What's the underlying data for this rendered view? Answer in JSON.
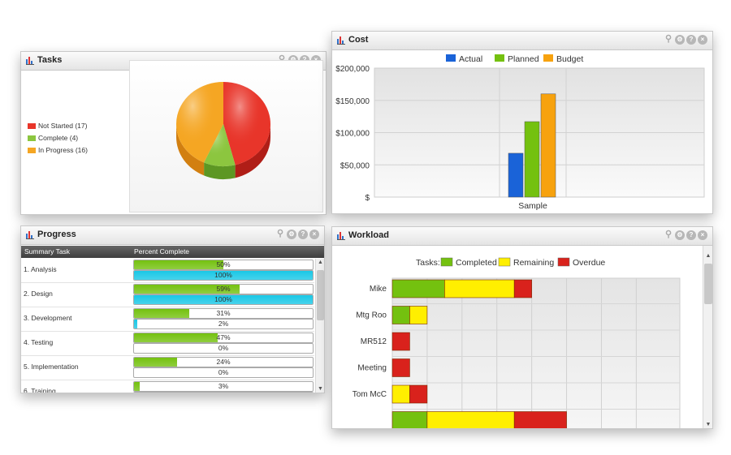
{
  "panels": {
    "tasks": {
      "title": "Tasks",
      "legend": [
        {
          "label": "Not Started (17)",
          "color": "#e8352a",
          "value": 17
        },
        {
          "label": "Complete (4)",
          "color": "#8cc63f",
          "value": 4
        },
        {
          "label": "In Progress (16)",
          "color": "#f5a623",
          "value": 16
        }
      ]
    },
    "cost": {
      "title": "Cost",
      "legend": [
        "Actual",
        "Planned",
        "Budget"
      ],
      "legend_colors": [
        "#1a63d8",
        "#74c10f",
        "#f7a20e"
      ],
      "y_ticks": [
        "$200,000",
        "$150,000",
        "$100,000",
        "$50,000",
        "$"
      ],
      "category": "Sample"
    },
    "progress": {
      "title": "Progress",
      "col_task": "Summary Task",
      "col_percent": "Percent Complete",
      "rows": [
        {
          "name": "1. Analysis",
          "complete_label": "50%",
          "complete": 50,
          "scheduled_label": "100%",
          "scheduled": 100
        },
        {
          "name": "2. Design",
          "complete_label": "59%",
          "complete": 59,
          "scheduled_label": "100%",
          "scheduled": 100
        },
        {
          "name": "3. Development",
          "complete_label": "31%",
          "complete": 31,
          "scheduled_label": "2%",
          "scheduled": 2
        },
        {
          "name": "4. Testing",
          "complete_label": "47%",
          "complete": 47,
          "scheduled_label": "0%",
          "scheduled": 0
        },
        {
          "name": "5. Implementation",
          "complete_label": "24%",
          "complete": 24,
          "scheduled_label": "0%",
          "scheduled": 0
        },
        {
          "name": "6. Training",
          "complete_label": "3%",
          "complete": 3,
          "scheduled_label": "",
          "scheduled": 0
        }
      ]
    },
    "workload": {
      "title": "Workload",
      "legend_prefix": "Tasks:",
      "legend": [
        "Completed",
        "Remaining",
        "Overdue"
      ],
      "legend_colors": [
        "#74c10f",
        "#ffef00",
        "#d9221c"
      ],
      "people": [
        "Mike",
        "Mtg Roo",
        "MR512",
        "Meeting",
        "Tom McC",
        ""
      ]
    }
  },
  "chart_data": [
    {
      "type": "pie",
      "categories": [
        "Not Started (17)",
        "Complete (4)",
        "In Progress (16)"
      ],
      "values": [
        17,
        4,
        16
      ]
    },
    {
      "type": "bar",
      "categories": [
        "Sample"
      ],
      "series": [
        {
          "name": "Actual",
          "values": [
            68000
          ]
        },
        {
          "name": "Planned",
          "values": [
            117000
          ]
        },
        {
          "name": "Budget",
          "values": [
            160000
          ]
        }
      ],
      "ylim": [
        0,
        200000
      ],
      "y_ticks": [
        "$200,000",
        "$150,000",
        "$100,000",
        "$50,000",
        "$"
      ],
      "grid": true,
      "legend": "top"
    },
    {
      "type": "bar",
      "orientation": "horizontal",
      "stacked": true,
      "categories": [
        "Mike",
        "Mtg Roo",
        "MR512",
        "Meeting",
        "Tom McC",
        ""
      ],
      "series": [
        {
          "name": "Completed",
          "values": [
            3,
            1,
            0,
            0,
            0,
            2
          ]
        },
        {
          "name": "Remaining",
          "values": [
            4,
            1,
            0,
            0,
            1,
            5
          ]
        },
        {
          "name": "Overdue",
          "values": [
            1,
            0,
            1,
            1,
            1,
            3
          ]
        }
      ],
      "grid": true,
      "legend": "top"
    }
  ]
}
